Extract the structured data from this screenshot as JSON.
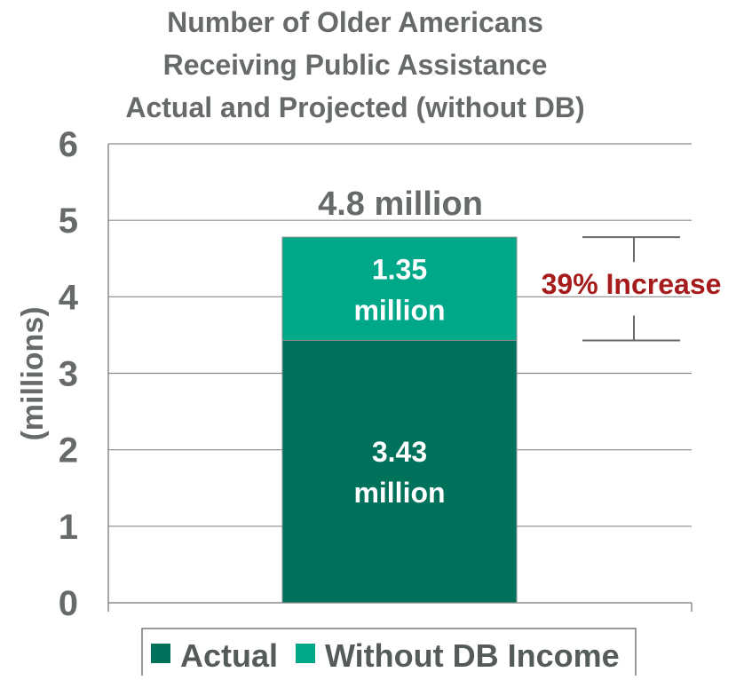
{
  "chart_data": {
    "type": "bar",
    "stacked": true,
    "title": [
      "Number of Older Americans",
      "Receiving Public Assistance",
      "Actual and Projected (without DB)"
    ],
    "ylabel": "(millions)",
    "xlabel": "",
    "ylim": [
      0,
      6
    ],
    "yticks": [
      "0",
      "1",
      "2",
      "3",
      "4",
      "5",
      "6"
    ],
    "grid": true,
    "categories": [
      ""
    ],
    "series": [
      {
        "name": "Actual",
        "values": [
          3.43
        ],
        "color": "#00715a",
        "label_lines": [
          "3.43",
          "million"
        ]
      },
      {
        "name": "Without DB Income",
        "values": [
          1.35
        ],
        "color": "#00a88a",
        "label_lines": [
          "1.35",
          "million"
        ]
      }
    ],
    "total_label": "4.8 million",
    "total_value": 4.78,
    "annotation": {
      "text": "39% Increase",
      "from": 3.43,
      "to": 4.78,
      "color": "#a61c1c"
    },
    "legend": {
      "position": "bottom"
    }
  }
}
